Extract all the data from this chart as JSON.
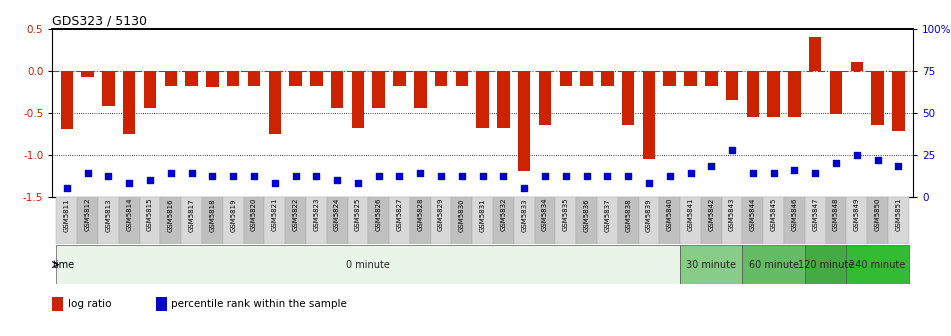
{
  "title": "GDS323 / 5130",
  "samples": [
    "GSM5811",
    "GSM5812",
    "GSM5813",
    "GSM5814",
    "GSM5815",
    "GSM5816",
    "GSM5817",
    "GSM5818",
    "GSM5819",
    "GSM5820",
    "GSM5821",
    "GSM5822",
    "GSM5823",
    "GSM5824",
    "GSM5825",
    "GSM5826",
    "GSM5827",
    "GSM5828",
    "GSM5829",
    "GSM5830",
    "GSM5831",
    "GSM5832",
    "GSM5833",
    "GSM5834",
    "GSM5835",
    "GSM5836",
    "GSM5837",
    "GSM5838",
    "GSM5839",
    "GSM5840",
    "GSM5841",
    "GSM5842",
    "GSM5843",
    "GSM5844",
    "GSM5845",
    "GSM5846",
    "GSM5847",
    "GSM5848",
    "GSM5849",
    "GSM5850",
    "GSM5851"
  ],
  "log_ratio": [
    -0.7,
    -0.08,
    -0.42,
    -0.75,
    -0.45,
    -0.18,
    -0.18,
    -0.2,
    -0.18,
    -0.18,
    -0.75,
    -0.18,
    -0.18,
    -0.45,
    -0.68,
    -0.45,
    -0.18,
    -0.45,
    -0.18,
    -0.18,
    -0.68,
    -0.68,
    -1.2,
    -0.65,
    -0.18,
    -0.18,
    -0.18,
    -0.65,
    -1.05,
    -0.18,
    -0.18,
    -0.18,
    -0.35,
    -0.55,
    -0.55,
    -0.55,
    0.4,
    -0.52,
    0.1,
    -0.65,
    -0.72
  ],
  "percentile": [
    5,
    14,
    12,
    8,
    10,
    14,
    14,
    12,
    12,
    12,
    8,
    12,
    12,
    10,
    8,
    12,
    12,
    14,
    12,
    12,
    12,
    12,
    5,
    12,
    12,
    12,
    12,
    12,
    8,
    12,
    14,
    18,
    28,
    14,
    14,
    16,
    14,
    20,
    25,
    22,
    18
  ],
  "time_groups": [
    {
      "label": "0 minute",
      "start": 0,
      "end": 30,
      "color": "#e8f5e8"
    },
    {
      "label": "30 minute",
      "start": 30,
      "end": 33,
      "color": "#88cc88"
    },
    {
      "label": "60 minute",
      "start": 33,
      "end": 36,
      "color": "#66bb66"
    },
    {
      "label": "120 minute",
      "start": 36,
      "end": 38,
      "color": "#44aa44"
    },
    {
      "label": "240 minute",
      "start": 38,
      "end": 41,
      "color": "#33bb33"
    }
  ],
  "bar_color": "#cc2200",
  "dot_color": "#0000cc",
  "ylim_left": [
    -1.5,
    0.5
  ],
  "ylim_right": [
    0,
    100
  ],
  "yticks_left": [
    -1.5,
    -1.0,
    -0.5,
    0.0,
    0.5
  ],
  "yticks_right": [
    0,
    25,
    50,
    75,
    100
  ],
  "ytick_labels_right": [
    "0",
    "25",
    "50",
    "75",
    "100%"
  ],
  "label_col1": "#d8d8d8",
  "label_col2": "#c0c0c0"
}
